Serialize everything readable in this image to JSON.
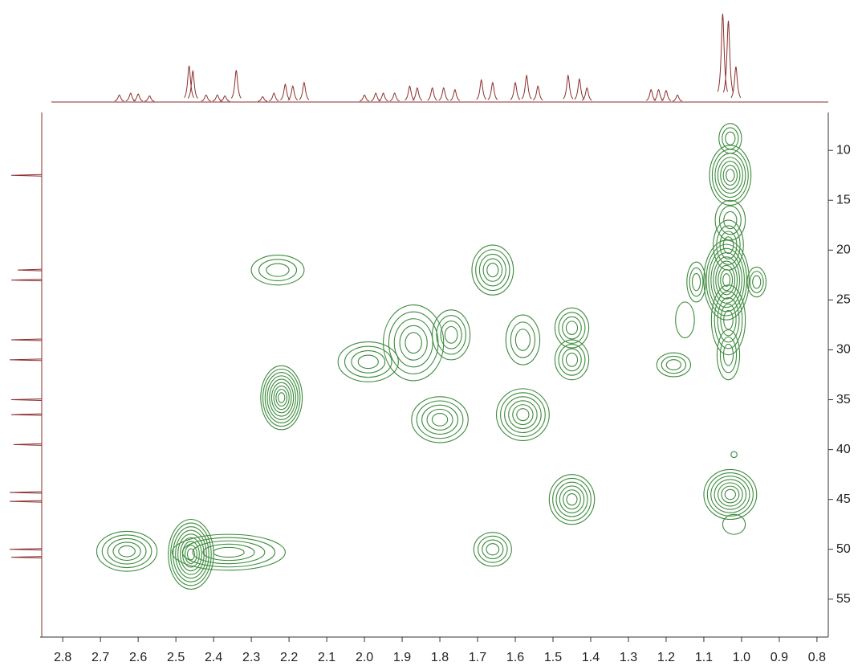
{
  "chart_data": {
    "type": "contour",
    "xlim": [
      2.86,
      0.77
    ],
    "ylim": [
      58.8,
      6.2
    ],
    "xticks": [
      2.8,
      2.7,
      2.6,
      2.5,
      2.4,
      2.3,
      2.2,
      2.1,
      {
        "value": 2,
        "label": "2.0"
      },
      1.9,
      1.8,
      1.7,
      1.6,
      1.5,
      1.4,
      1.3,
      1.2,
      1.1,
      {
        "value": 1,
        "label": "1.0"
      },
      0.9,
      0.8
    ],
    "yticks": [
      10,
      15,
      20,
      25,
      30,
      35,
      40,
      45,
      50,
      55
    ],
    "contour_color": "#3d8b3d",
    "projection_color": "#8b2e2e",
    "peaks": [
      {
        "x": 2.23,
        "y": 22,
        "rx": 0.07,
        "ry": 1.5,
        "levels": 3
      },
      {
        "x": 1.66,
        "y": 22,
        "rx": 0.055,
        "ry": 2.5,
        "levels": 5
      },
      {
        "x": 1.03,
        "y": 8.8,
        "rx": 0.03,
        "ry": 1.5,
        "levels": 3
      },
      {
        "x": 1.03,
        "y": 12.5,
        "rx": 0.055,
        "ry": 3,
        "levels": 7
      },
      {
        "x": 1.03,
        "y": 17,
        "rx": 0.04,
        "ry": 2,
        "levels": 3
      },
      {
        "x": 1.035,
        "y": 19.5,
        "rx": 0.04,
        "ry": 2.5,
        "levels": 4
      },
      {
        "x": 1.04,
        "y": 23,
        "rx": 0.06,
        "ry": 4,
        "levels": 9
      },
      {
        "x": 1.035,
        "y": 27,
        "rx": 0.045,
        "ry": 3.5,
        "levels": 5
      },
      {
        "x": 1.035,
        "y": 30.5,
        "rx": 0.03,
        "ry": 2.5,
        "levels": 3
      },
      {
        "x": 1.12,
        "y": 23.2,
        "rx": 0.025,
        "ry": 2,
        "levels": 3
      },
      {
        "x": 0.96,
        "y": 23.2,
        "rx": 0.025,
        "ry": 1.5,
        "levels": 3
      },
      {
        "x": 1.15,
        "y": 27,
        "rx": 0.025,
        "ry": 1.8,
        "levels": 1
      },
      {
        "x": 1.18,
        "y": 31.5,
        "rx": 0.045,
        "ry": 1.2,
        "levels": 3
      },
      {
        "x": 2.22,
        "y": 34.8,
        "rx": 0.055,
        "ry": 3.2,
        "levels": 9
      },
      {
        "x": 1.99,
        "y": 31.2,
        "rx": 0.08,
        "ry": 2,
        "levels": 4
      },
      {
        "x": 1.87,
        "y": 29.3,
        "rx": 0.08,
        "ry": 3.8,
        "levels": 5
      },
      {
        "x": 1.77,
        "y": 28.5,
        "rx": 0.05,
        "ry": 2.5,
        "levels": 4
      },
      {
        "x": 1.58,
        "y": 29,
        "rx": 0.045,
        "ry": 2.5,
        "levels": 3
      },
      {
        "x": 1.45,
        "y": 27.8,
        "rx": 0.045,
        "ry": 2,
        "levels": 4
      },
      {
        "x": 1.45,
        "y": 31,
        "rx": 0.045,
        "ry": 2,
        "levels": 4
      },
      {
        "x": 1.8,
        "y": 37,
        "rx": 0.075,
        "ry": 2.3,
        "levels": 5
      },
      {
        "x": 1.58,
        "y": 36.5,
        "rx": 0.07,
        "ry": 2.6,
        "levels": 6
      },
      {
        "x": 1.45,
        "y": 45,
        "rx": 0.06,
        "ry": 2.5,
        "levels": 6
      },
      {
        "x": 1.03,
        "y": 44.5,
        "rx": 0.07,
        "ry": 2.5,
        "levels": 7
      },
      {
        "x": 1.02,
        "y": 47.5,
        "rx": 0.03,
        "ry": 1,
        "levels": 1
      },
      {
        "x": 1.02,
        "y": 40.5,
        "rx": 0.008,
        "ry": 0.3,
        "levels": 1
      },
      {
        "x": 1.66,
        "y": 50,
        "rx": 0.05,
        "ry": 1.7,
        "levels": 4
      },
      {
        "x": 2.63,
        "y": 50.2,
        "rx": 0.08,
        "ry": 2,
        "levels": 5
      },
      {
        "x": 2.46,
        "y": 50.5,
        "rx": 0.06,
        "ry": 3.5,
        "levels": 9
      },
      {
        "x": 2.36,
        "y": 50.3,
        "rx": 0.15,
        "ry": 1.8,
        "levels": 5
      }
    ],
    "top_projection": [
      {
        "x": 2.65,
        "h": 8
      },
      {
        "x": 2.62,
        "h": 10
      },
      {
        "x": 2.6,
        "h": 9
      },
      {
        "x": 2.57,
        "h": 7
      },
      {
        "x": 2.465,
        "h": 41
      },
      {
        "x": 2.455,
        "h": 35
      },
      {
        "x": 2.42,
        "h": 8
      },
      {
        "x": 2.39,
        "h": 8
      },
      {
        "x": 2.37,
        "h": 7
      },
      {
        "x": 2.34,
        "h": 36
      },
      {
        "x": 2.27,
        "h": 6
      },
      {
        "x": 2.24,
        "h": 10
      },
      {
        "x": 2.21,
        "h": 20
      },
      {
        "x": 2.19,
        "h": 18
      },
      {
        "x": 2.16,
        "h": 22
      },
      {
        "x": 2.0,
        "h": 8
      },
      {
        "x": 1.97,
        "h": 10
      },
      {
        "x": 1.95,
        "h": 10
      },
      {
        "x": 1.92,
        "h": 10
      },
      {
        "x": 1.88,
        "h": 18
      },
      {
        "x": 1.86,
        "h": 16
      },
      {
        "x": 1.82,
        "h": 16
      },
      {
        "x": 1.79,
        "h": 16
      },
      {
        "x": 1.76,
        "h": 14
      },
      {
        "x": 1.69,
        "h": 25
      },
      {
        "x": 1.66,
        "h": 22
      },
      {
        "x": 1.6,
        "h": 22
      },
      {
        "x": 1.57,
        "h": 30
      },
      {
        "x": 1.54,
        "h": 18
      },
      {
        "x": 1.46,
        "h": 30
      },
      {
        "x": 1.43,
        "h": 26
      },
      {
        "x": 1.41,
        "h": 16
      },
      {
        "x": 1.24,
        "h": 14
      },
      {
        "x": 1.22,
        "h": 14
      },
      {
        "x": 1.2,
        "h": 13
      },
      {
        "x": 1.17,
        "h": 8
      },
      {
        "x": 1.05,
        "h": 100
      },
      {
        "x": 1.035,
        "h": 92
      },
      {
        "x": 1.015,
        "h": 40
      }
    ],
    "left_projection": [
      {
        "y": 12.5,
        "h": 95
      },
      {
        "y": 22,
        "h": 75
      },
      {
        "y": 23,
        "h": 95
      },
      {
        "y": 29,
        "h": 95
      },
      {
        "y": 31,
        "h": 100
      },
      {
        "y": 35,
        "h": 95
      },
      {
        "y": 36.5,
        "h": 95
      },
      {
        "y": 39.5,
        "h": 88
      },
      {
        "y": 44.3,
        "h": 100
      },
      {
        "y": 45.2,
        "h": 100
      },
      {
        "y": 50,
        "h": 100
      },
      {
        "y": 50.8,
        "h": 95
      }
    ]
  }
}
